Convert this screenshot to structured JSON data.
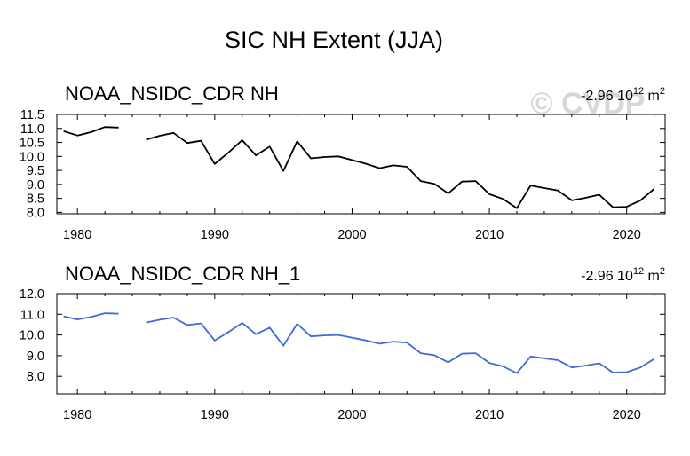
{
  "title": "SIC NH Extent (JJA)",
  "watermark": "© CVDP",
  "chart_data": [
    {
      "type": "line",
      "panel_title": "NOAA_NSIDC_CDR NH",
      "trend": {
        "value": "-2.96 10",
        "exponent": "12",
        "unit": "m",
        "unit_exp": "2"
      },
      "line_color": "#000000",
      "xlim": [
        1978.5,
        2022.8
      ],
      "ylim": [
        7.95,
        11.5
      ],
      "yticks": [
        8.0,
        8.5,
        9.0,
        9.5,
        10.0,
        10.5,
        11.0,
        11.5
      ],
      "ytick_labels": [
        "8.0",
        "8.5",
        "9.0",
        "9.5",
        "10.0",
        "10.5",
        "11.0",
        "11.5"
      ],
      "xticks": [
        1980,
        1990,
        2000,
        2010,
        2020
      ],
      "xtick_labels": [
        "1980",
        "1990",
        "2000",
        "2010",
        "2020"
      ],
      "series": [
        {
          "name": "NOAA_NSIDC_CDR NH",
          "x": [
            1979,
            1980,
            1981,
            1982,
            1983
          ],
          "values": [
            10.9,
            10.75,
            10.87,
            11.05,
            11.03
          ]
        },
        {
          "name": "NOAA_NSIDC_CDR NH",
          "x": [
            1985,
            1986,
            1987,
            1988,
            1989,
            1990,
            1991,
            1992,
            1993,
            1994,
            1995,
            1996,
            1997,
            1998,
            1999,
            2000,
            2001,
            2002,
            2003,
            2004,
            2005,
            2006,
            2007,
            2008,
            2009,
            2010,
            2011,
            2012,
            2013,
            2014,
            2015,
            2016,
            2017,
            2018,
            2019,
            2020,
            2021,
            2022
          ],
          "values": [
            10.6,
            10.74,
            10.84,
            10.48,
            10.56,
            9.73,
            10.14,
            10.58,
            10.04,
            10.35,
            9.48,
            10.54,
            9.93,
            9.98,
            10.0,
            9.87,
            9.74,
            9.58,
            9.68,
            9.63,
            9.12,
            9.02,
            8.68,
            9.1,
            9.12,
            8.65,
            8.48,
            8.15,
            8.96,
            8.87,
            8.78,
            8.43,
            8.52,
            8.63,
            8.18,
            8.2,
            8.43,
            8.84
          ]
        }
      ]
    },
    {
      "type": "line",
      "panel_title": "NOAA_NSIDC_CDR NH_1",
      "trend": {
        "value": "-2.96 10",
        "exponent": "12",
        "unit": "m",
        "unit_exp": "2"
      },
      "line_color": "#4169d9",
      "xlim": [
        1978.5,
        2022.8
      ],
      "ylim": [
        7.15,
        12.0
      ],
      "yticks": [
        8.0,
        9.0,
        10.0,
        11.0,
        12.0
      ],
      "ytick_labels": [
        "8.0",
        "9.0",
        "10.0",
        "11.0",
        "12.0"
      ],
      "xticks": [
        1980,
        1990,
        2000,
        2010,
        2020
      ],
      "xtick_labels": [
        "1980",
        "1990",
        "2000",
        "2010",
        "2020"
      ],
      "series": [
        {
          "name": "NOAA_NSIDC_CDR NH_1",
          "x": [
            1979,
            1980,
            1981,
            1982,
            1983
          ],
          "values": [
            10.9,
            10.75,
            10.87,
            11.05,
            11.03
          ]
        },
        {
          "name": "NOAA_NSIDC_CDR NH_1",
          "x": [
            1985,
            1986,
            1987,
            1988,
            1989,
            1990,
            1991,
            1992,
            1993,
            1994,
            1995,
            1996,
            1997,
            1998,
            1999,
            2000,
            2001,
            2002,
            2003,
            2004,
            2005,
            2006,
            2007,
            2008,
            2009,
            2010,
            2011,
            2012,
            2013,
            2014,
            2015,
            2016,
            2017,
            2018,
            2019,
            2020,
            2021,
            2022
          ],
          "values": [
            10.6,
            10.74,
            10.84,
            10.48,
            10.56,
            9.73,
            10.14,
            10.58,
            10.04,
            10.35,
            9.48,
            10.54,
            9.93,
            9.98,
            10.0,
            9.87,
            9.74,
            9.58,
            9.68,
            9.63,
            9.12,
            9.02,
            8.68,
            9.1,
            9.12,
            8.65,
            8.48,
            8.15,
            8.96,
            8.87,
            8.78,
            8.43,
            8.52,
            8.63,
            8.18,
            8.2,
            8.43,
            8.84
          ]
        }
      ]
    }
  ]
}
